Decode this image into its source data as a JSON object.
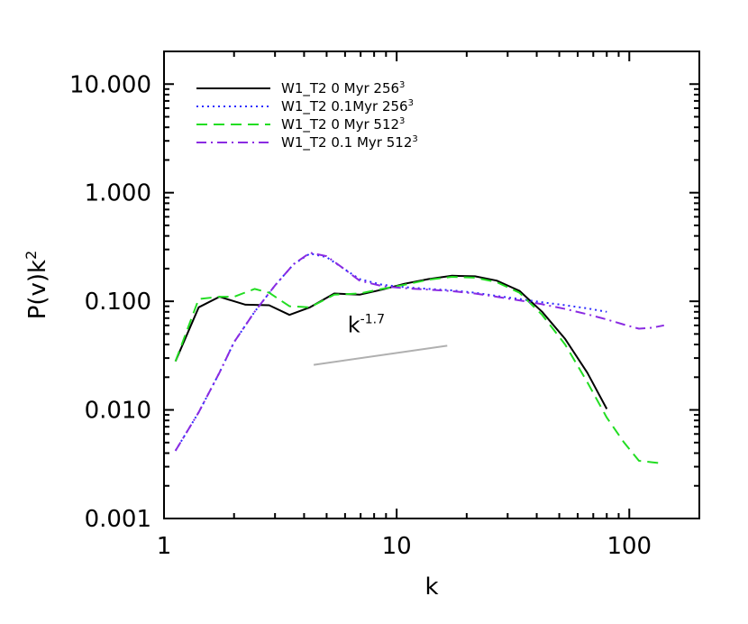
{
  "chart_data": {
    "type": "line",
    "xlabel": "k",
    "ylabel": "P(v)k",
    "ylabel_sup": "2",
    "xscale": "log",
    "yscale": "log",
    "xlim": [
      1,
      200
    ],
    "ylim": [
      0.001,
      20
    ],
    "xticks": [
      1,
      10,
      100
    ],
    "xtick_labels": [
      "1",
      "10",
      "100"
    ],
    "yticks": [
      0.001,
      0.01,
      0.1,
      1,
      10
    ],
    "ytick_labels": [
      "0.001",
      "0.010",
      "0.100",
      "1.000",
      "10.000"
    ],
    "grid": false,
    "legend_position": "top-left",
    "series": [
      {
        "name": "W1_T2 0 Myr 256",
        "name_sup": "3",
        "color": "#000000",
        "style": "solid",
        "x": [
          1.12,
          1.41,
          1.73,
          2.0,
          2.24,
          2.83,
          3.46,
          4.24,
          5.39,
          6.93,
          8.66,
          10.8,
          13.7,
          17.3,
          21.7,
          26.9,
          33.7,
          42.2,
          53.0,
          66.0,
          80.0
        ],
        "y": [
          0.028,
          0.088,
          0.11,
          0.1,
          0.093,
          0.092,
          0.075,
          0.088,
          0.118,
          0.115,
          0.128,
          0.145,
          0.16,
          0.172,
          0.17,
          0.155,
          0.125,
          0.08,
          0.045,
          0.022,
          0.0102
        ]
      },
      {
        "name": "W1_T2 0.1Myr 256",
        "name_sup": "3",
        "color": "#2b2bff",
        "style": "dotted",
        "x": [
          1.12,
          1.41,
          1.73,
          2.0,
          2.45,
          3.0,
          3.61,
          4.24,
          5.0,
          5.92,
          6.93,
          8.66,
          10.8,
          13.7,
          17.3,
          21.7,
          26.9,
          33.7,
          42.2,
          53.0,
          66.0,
          80.0
        ],
        "y": [
          0.0042,
          0.0095,
          0.022,
          0.042,
          0.08,
          0.14,
          0.22,
          0.275,
          0.255,
          0.2,
          0.16,
          0.142,
          0.135,
          0.13,
          0.126,
          0.12,
          0.112,
          0.105,
          0.098,
          0.092,
          0.086,
          0.08
        ]
      },
      {
        "name": "W1_T2 0 Myr 512",
        "name_sup": "3",
        "color": "#22dd22",
        "style": "dashed",
        "x": [
          1.12,
          1.41,
          1.73,
          2.0,
          2.45,
          2.83,
          3.46,
          4.24,
          5.39,
          6.93,
          8.66,
          10.8,
          13.7,
          17.3,
          21.7,
          26.9,
          33.7,
          42.2,
          53.0,
          66.0,
          80.0,
          95.0,
          110.0,
          125.0,
          141.0
        ],
        "y": [
          0.028,
          0.105,
          0.11,
          0.11,
          0.13,
          0.12,
          0.09,
          0.088,
          0.115,
          0.118,
          0.13,
          0.142,
          0.158,
          0.168,
          0.165,
          0.15,
          0.12,
          0.075,
          0.04,
          0.018,
          0.0085,
          0.005,
          0.0034,
          0.0033,
          0.0032
        ]
      },
      {
        "name": "W1_T2 0.1 Myr 512",
        "name_sup": "3",
        "color": "#8a2be2",
        "style": "dashdot",
        "x": [
          1.12,
          1.41,
          1.73,
          2.0,
          2.45,
          3.0,
          3.61,
          4.24,
          5.0,
          5.92,
          6.93,
          8.66,
          10.8,
          13.7,
          17.3,
          21.7,
          26.9,
          33.7,
          42.2,
          53.0,
          66.0,
          80.0,
          95.0,
          110.0,
          125.0,
          141.0
        ],
        "y": [
          0.0042,
          0.0095,
          0.022,
          0.042,
          0.08,
          0.14,
          0.22,
          0.28,
          0.26,
          0.2,
          0.155,
          0.138,
          0.132,
          0.128,
          0.124,
          0.118,
          0.11,
          0.102,
          0.094,
          0.085,
          0.076,
          0.068,
          0.061,
          0.056,
          0.057,
          0.06
        ]
      }
    ],
    "annotations": [
      {
        "text": "k",
        "text_sup": "-1.7",
        "color": "#b0b0b0",
        "line_x": [
          4.4,
          16.5
        ],
        "line_y": [
          0.026,
          0.039
        ],
        "text_at": [
          7.4,
          0.052
        ]
      }
    ]
  }
}
